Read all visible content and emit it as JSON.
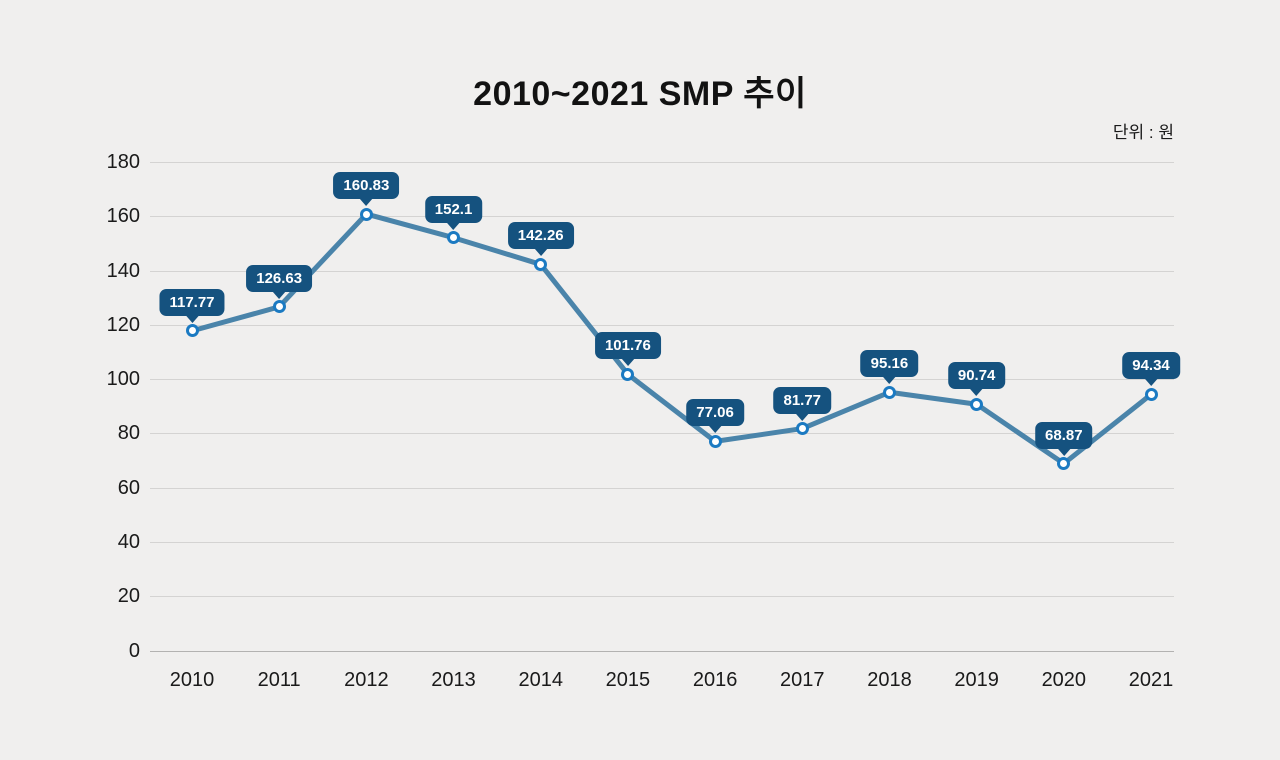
{
  "page": {
    "background_color": "#f0efee"
  },
  "header": {
    "title": "2010~2021 SMP 추이",
    "unit_label": "단위 : 원"
  },
  "chart_data": {
    "type": "line",
    "title": "2010~2021 SMP 추이",
    "unit": "단위 : 원",
    "categories": [
      "2010",
      "2011",
      "2012",
      "2013",
      "2014",
      "2015",
      "2016",
      "2017",
      "2018",
      "2019",
      "2020",
      "2021"
    ],
    "series": [
      {
        "name": "SMP",
        "values": [
          117.77,
          126.63,
          160.83,
          152.1,
          142.26,
          101.76,
          77.06,
          81.77,
          95.16,
          90.74,
          68.87,
          94.34
        ],
        "point_labels": [
          "117.77",
          "126.63",
          "160.83",
          "152.1",
          "142.26",
          "101.76",
          "77.06",
          "81.77",
          "95.16",
          "90.74",
          "68.87",
          "94.34"
        ]
      }
    ],
    "ylim": [
      0,
      180
    ],
    "ytick_step": 20,
    "ytick_labels": [
      "180",
      "160",
      "140",
      "120",
      "100",
      "80",
      "60",
      "40",
      "20",
      "0"
    ],
    "grid": true,
    "legend": "none",
    "colors": {
      "line": "#4a84aa",
      "marker_ring": "#1b7ac2",
      "marker_fill": "#ffffff",
      "label_bg": "#15527f",
      "label_text": "#ffffff",
      "gridline": "#d4d3d2",
      "zero_line": "#b3b2b1",
      "axis_text": "#1a1a1a",
      "title_text": "#121212"
    }
  }
}
